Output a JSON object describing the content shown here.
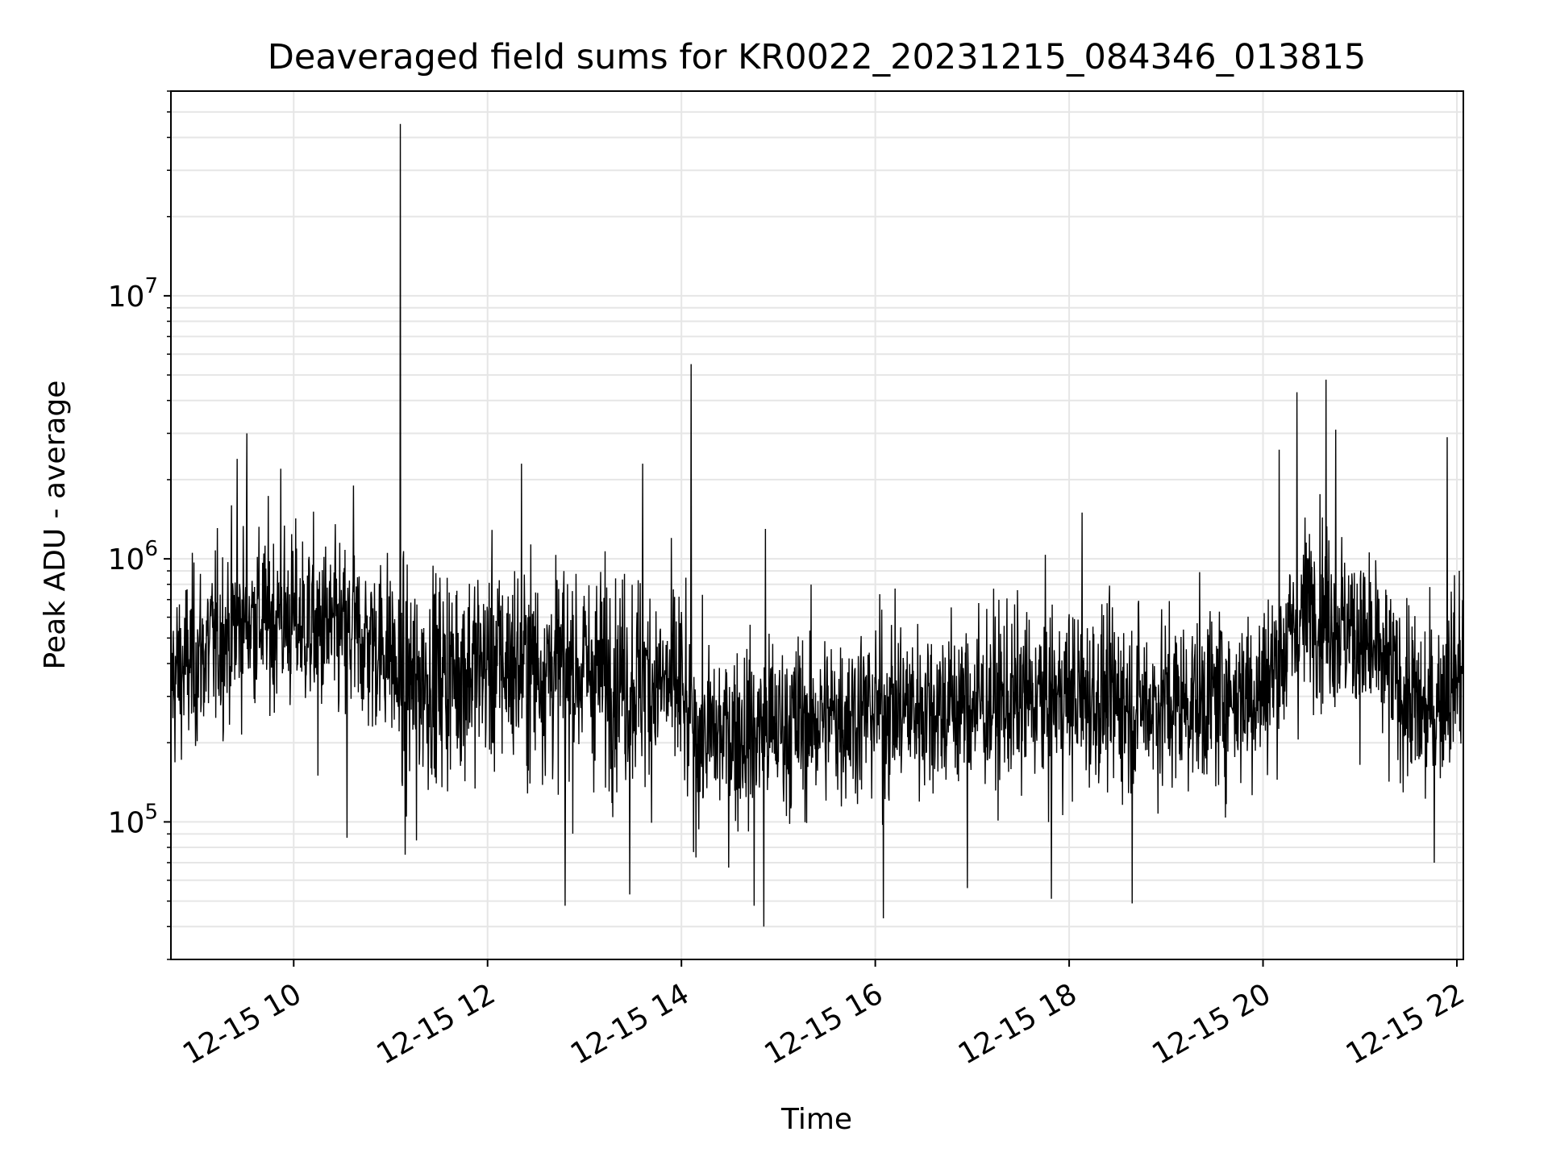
{
  "chart_data": {
    "type": "line",
    "title": "Deaveraged field sums for KR0022_20231215_084346_013815",
    "xlabel": "Time",
    "ylabel": "Peak ADU - average",
    "x_start": "2023-12-15 08:44",
    "x_end": "2023-12-15 22:04",
    "xlim": [
      "2023-12-15 08:44",
      "2023-12-15 22:04"
    ],
    "ylim": [
      30000,
      60000000
    ],
    "yscale": "log",
    "grid": true,
    "x_ticks": [
      "12-15 10",
      "12-15 12",
      "12-15 14",
      "12-15 16",
      "12-15 18",
      "12-15 20",
      "12-15 22"
    ],
    "y_ticks": [
      {
        "value": 100000,
        "base": "10",
        "exp": "5"
      },
      {
        "value": 1000000,
        "base": "10",
        "exp": "6"
      },
      {
        "value": 10000000,
        "base": "10",
        "exp": "7"
      }
    ],
    "series": [
      {
        "color": "#000000",
        "trend": [
          [
            "2023-12-15 08:44",
            350000
          ],
          [
            "2023-12-15 09:30",
            600000
          ],
          [
            "2023-12-15 10:00",
            580000
          ],
          [
            "2023-12-15 11:00",
            460000
          ],
          [
            "2023-12-15 11:05",
            330000
          ],
          [
            "2023-12-15 12:00",
            400000
          ],
          [
            "2023-12-15 13:00",
            380000
          ],
          [
            "2023-12-15 14:00",
            320000
          ],
          [
            "2023-12-15 14:05",
            210000
          ],
          [
            "2023-12-15 15:00",
            230000
          ],
          [
            "2023-12-15 16:00",
            270000
          ],
          [
            "2023-12-15 17:00",
            280000
          ],
          [
            "2023-12-15 18:00",
            300000
          ],
          [
            "2023-12-15 19:00",
            280000
          ],
          [
            "2023-12-15 20:00",
            320000
          ],
          [
            "2023-12-15 20:30",
            700000
          ],
          [
            "2023-12-15 21:00",
            500000
          ],
          [
            "2023-12-15 21:40",
            250000
          ],
          [
            "2023-12-15 22:04",
            400000
          ]
        ],
        "spikes": [
          [
            "2023-12-15 09:25",
            2400000
          ],
          [
            "2023-12-15 09:31",
            3000000
          ],
          [
            "2023-12-15 09:52",
            2200000
          ],
          [
            "2023-12-15 10:37",
            1900000
          ],
          [
            "2023-12-15 11:06",
            45000000
          ],
          [
            "2023-12-15 11:09",
            75000
          ],
          [
            "2023-12-15 11:16",
            85000
          ],
          [
            "2023-12-15 10:15",
            150000
          ],
          [
            "2023-12-15 10:33",
            87000
          ],
          [
            "2023-12-15 12:21",
            2300000
          ],
          [
            "2023-12-15 12:48",
            48000
          ],
          [
            "2023-12-15 13:28",
            53000
          ],
          [
            "2023-12-15 13:36",
            2300000
          ],
          [
            "2023-12-15 14:06",
            5500000
          ],
          [
            "2023-12-15 14:45",
            48000
          ],
          [
            "2023-12-15 14:51",
            40000
          ],
          [
            "2023-12-15 14:52",
            1300000
          ],
          [
            "2023-12-15 16:05",
            43000
          ],
          [
            "2023-12-15 16:57",
            56000
          ],
          [
            "2023-12-15 17:49",
            51000
          ],
          [
            "2023-12-15 18:08",
            1500000
          ],
          [
            "2023-12-15 18:39",
            49000
          ],
          [
            "2023-12-15 20:10",
            2600000
          ],
          [
            "2023-12-15 20:21",
            4300000
          ],
          [
            "2023-12-15 20:39",
            4800000
          ],
          [
            "2023-12-15 20:45",
            3100000
          ],
          [
            "2023-12-15 21:46",
            70000
          ],
          [
            "2023-12-15 21:54",
            2900000
          ]
        ]
      }
    ]
  }
}
